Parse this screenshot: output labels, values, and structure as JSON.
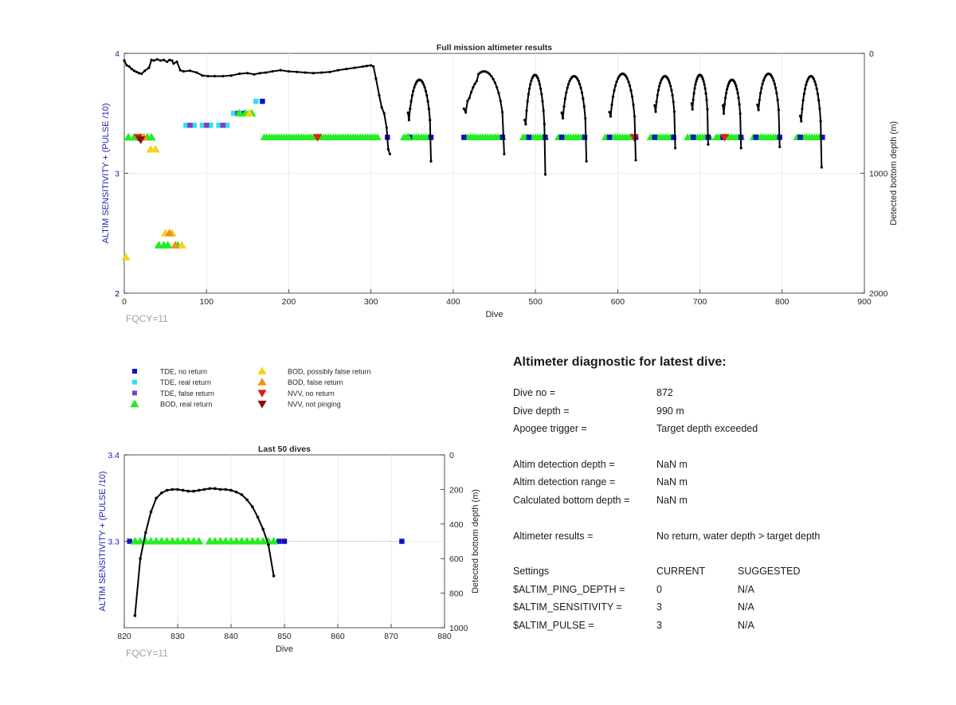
{
  "colors": {
    "tde_no_return": "#1010c8",
    "tde_real_return": "#2ee0f0",
    "tde_false_return": "#8040c8",
    "bod_real_return": "#22ee22",
    "bod_possibly_false": "#f6d21a",
    "bod_false_return": "#f09020",
    "nvv_no_return": "#e02010",
    "nvv_not_pinging": "#8a1010",
    "trace": "#000000",
    "left_axis_label": "#1e1eaa",
    "fqcy": "#a0a0a0"
  },
  "legend": [
    {
      "key": "tde_no_return",
      "marker": "square",
      "label": "TDE, no return"
    },
    {
      "key": "tde_real_return",
      "marker": "square",
      "label": "TDE, real return"
    },
    {
      "key": "tde_false_return",
      "marker": "square",
      "label": "TDE, false return"
    },
    {
      "key": "bod_real_return",
      "marker": "triangle-up",
      "label": "BOD, real return"
    },
    {
      "key": "bod_possibly_false",
      "marker": "triangle-up",
      "label": "BOD, possibly false return"
    },
    {
      "key": "bod_false_return",
      "marker": "triangle-up",
      "label": "BOD, false return"
    },
    {
      "key": "nvv_no_return",
      "marker": "triangle-down",
      "label": "NVV, no return"
    },
    {
      "key": "nvv_not_pinging",
      "marker": "triangle-down",
      "label": "NVV, not pinging"
    }
  ],
  "chart_data": [
    {
      "type": "scatter",
      "title": "Full mission altimeter results",
      "xlabel": "Dive",
      "ylabel": "ALTIM SENSITIVITY + (PULSE /10)",
      "y2label": "Detected bottom depth (m)",
      "annotation": "FQCY=11",
      "xlim": [
        0,
        900
      ],
      "xticks": [
        0,
        100,
        200,
        300,
        400,
        500,
        600,
        700,
        800,
        900
      ],
      "ylim": [
        2,
        4
      ],
      "yticks": [
        2,
        3,
        4
      ],
      "y2lim": [
        2000,
        0
      ],
      "y2ticks": [
        0,
        1000,
        2000
      ],
      "grid": true,
      "markers": {
        "tde_no_return": [
          [
            168,
            3.6
          ],
          [
            145,
            3.5
          ],
          [
            320,
            3.3
          ],
          [
            347,
            3.3
          ],
          [
            373,
            3.3
          ],
          [
            413,
            3.3
          ],
          [
            460,
            3.3
          ],
          [
            492,
            3.3
          ],
          [
            512,
            3.3
          ],
          [
            532,
            3.3
          ],
          [
            560,
            3.3
          ],
          [
            590,
            3.3
          ],
          [
            622,
            3.3
          ],
          [
            645,
            3.3
          ],
          [
            668,
            3.3
          ],
          [
            692,
            3.3
          ],
          [
            710,
            3.3
          ],
          [
            728,
            3.3
          ],
          [
            750,
            3.3
          ],
          [
            768,
            3.3
          ],
          [
            797,
            3.3
          ],
          [
            822,
            3.3
          ],
          [
            849,
            3.3
          ]
        ],
        "tde_real_return": [
          [
            160,
            3.6
          ],
          [
            75,
            3.4
          ],
          [
            85,
            3.4
          ],
          [
            95,
            3.4
          ],
          [
            105,
            3.4
          ],
          [
            115,
            3.4
          ],
          [
            125,
            3.4
          ],
          [
            133,
            3.5
          ],
          [
            140,
            3.5
          ],
          [
            150,
            3.5
          ]
        ],
        "tde_false_return": [
          [
            80,
            3.4
          ],
          [
            100,
            3.4
          ],
          [
            120,
            3.4
          ],
          [
            138,
            3.5
          ]
        ],
        "bod_real_return": [
          [
            5,
            3.3
          ],
          [
            12,
            3.3
          ],
          [
            20,
            3.3
          ],
          [
            28,
            3.3
          ],
          [
            33,
            3.3
          ],
          [
            42,
            2.4
          ],
          [
            48,
            2.4
          ],
          [
            53,
            2.4
          ],
          [
            65,
            2.4
          ],
          [
            140,
            3.5
          ],
          [
            147,
            3.5
          ],
          [
            155,
            3.5
          ],
          [
            345,
            3.3
          ]
        ],
        "bod_possibly_false": [
          [
            2,
            2.3
          ],
          [
            32,
            3.2
          ],
          [
            38,
            3.2
          ],
          [
            50,
            2.5
          ],
          [
            58,
            2.5
          ],
          [
            70,
            2.4
          ],
          [
            152,
            3.5
          ]
        ],
        "bod_false_return": [
          [
            24,
            3.3
          ],
          [
            55,
            2.5
          ],
          [
            62,
            2.4
          ]
        ],
        "nvv_no_return": [
          [
            17,
            3.3
          ],
          [
            235,
            3.3
          ],
          [
            620,
            3.3
          ],
          [
            730,
            3.3
          ]
        ],
        "nvv_not_pinging": [
          [
            20,
            3.28
          ]
        ]
      },
      "bod_runs": [
        [
          170,
          310
        ],
        [
          340,
          372
        ],
        [
          415,
          462
        ],
        [
          485,
          512
        ],
        [
          528,
          558
        ],
        [
          585,
          620
        ],
        [
          640,
          668
        ],
        [
          685,
          712
        ],
        [
          720,
          752
        ],
        [
          765,
          795
        ],
        [
          818,
          847
        ]
      ],
      "trace_plateau": [
        [
          0,
          60
        ],
        [
          3,
          100
        ],
        [
          6,
          110
        ],
        [
          9,
          130
        ],
        [
          12,
          145
        ],
        [
          15,
          155
        ],
        [
          18,
          165
        ],
        [
          21,
          170
        ],
        [
          25,
          145
        ],
        [
          30,
          120
        ],
        [
          33,
          55
        ],
        [
          36,
          60
        ],
        [
          40,
          50
        ],
        [
          44,
          60
        ],
        [
          48,
          55
        ],
        [
          52,
          70
        ],
        [
          55,
          55
        ],
        [
          58,
          60
        ],
        [
          60,
          85
        ],
        [
          64,
          70
        ],
        [
          68,
          140
        ],
        [
          72,
          150
        ],
        [
          80,
          145
        ],
        [
          88,
          160
        ],
        [
          95,
          185
        ],
        [
          102,
          190
        ],
        [
          110,
          190
        ],
        [
          120,
          190
        ],
        [
          130,
          185
        ],
        [
          140,
          170
        ],
        [
          150,
          165
        ],
        [
          158,
          175
        ],
        [
          165,
          165
        ],
        [
          172,
          160
        ],
        [
          180,
          150
        ],
        [
          190,
          140
        ],
        [
          200,
          150
        ],
        [
          210,
          155
        ],
        [
          220,
          160
        ],
        [
          230,
          165
        ],
        [
          240,
          160
        ],
        [
          250,
          155
        ],
        [
          260,
          140
        ],
        [
          270,
          130
        ],
        [
          280,
          120
        ],
        [
          290,
          110
        ],
        [
          295,
          105
        ],
        [
          300,
          100
        ],
        [
          303,
          110
        ],
        [
          306,
          210
        ],
        [
          310,
          350
        ],
        [
          313,
          450
        ],
        [
          316,
          500
        ],
        [
          319,
          620
        ],
        [
          321,
          800
        ],
        [
          323,
          840
        ]
      ],
      "dives": [
        {
          "start": 345,
          "end": 373,
          "apex_depth": 220,
          "end_depth": 900
        },
        {
          "start": 413,
          "end": 462,
          "apex_depth": 150,
          "end_depth": 840,
          "mid_bump": true
        },
        {
          "start": 487,
          "end": 512,
          "apex_depth": 180,
          "end_depth": 1010
        },
        {
          "start": 532,
          "end": 562,
          "apex_depth": 190,
          "end_depth": 900
        },
        {
          "start": 590,
          "end": 622,
          "apex_depth": 170,
          "end_depth": 890
        },
        {
          "start": 645,
          "end": 670,
          "apex_depth": 190,
          "end_depth": 790
        },
        {
          "start": 690,
          "end": 710,
          "apex_depth": 180,
          "end_depth": 760
        },
        {
          "start": 728,
          "end": 750,
          "apex_depth": 220,
          "end_depth": 790
        },
        {
          "start": 770,
          "end": 797,
          "apex_depth": 170,
          "end_depth": 780
        },
        {
          "start": 822,
          "end": 848,
          "apex_depth": 190,
          "end_depth": 950
        }
      ]
    },
    {
      "type": "scatter",
      "title": "Last 50 dives",
      "xlabel": "Dive",
      "ylabel": "ALTIM SENSITIVITY + (PULSE /10)",
      "y2label": "Detected bottom depth (m)",
      "annotation": "FQCY=11",
      "xlim": [
        820,
        880
      ],
      "xticks": [
        820,
        830,
        840,
        850,
        860,
        870,
        880
      ],
      "ylim": [
        3.2,
        3.4
      ],
      "yticks": [
        3.3,
        3.4
      ],
      "y2lim": [
        1000,
        0
      ],
      "y2ticks": [
        0,
        200,
        400,
        600,
        800,
        1000
      ],
      "grid": true,
      "markers": {
        "tde_no_return": [
          [
            821,
            3.3
          ],
          [
            849,
            3.3
          ],
          [
            850,
            3.3
          ],
          [
            872,
            3.3
          ]
        ],
        "bod_real_return": [
          [
            822,
            3.3
          ],
          [
            823,
            3.3
          ],
          [
            824,
            3.3
          ],
          [
            825,
            3.3
          ],
          [
            826,
            3.3
          ],
          [
            827,
            3.3
          ],
          [
            828,
            3.3
          ],
          [
            829,
            3.3
          ],
          [
            830,
            3.3
          ],
          [
            831,
            3.3
          ],
          [
            832,
            3.3
          ],
          [
            833,
            3.3
          ],
          [
            834,
            3.3
          ],
          [
            836,
            3.3
          ],
          [
            837,
            3.3
          ],
          [
            838,
            3.3
          ],
          [
            839,
            3.3
          ],
          [
            840,
            3.3
          ],
          [
            841,
            3.3
          ],
          [
            842,
            3.3
          ],
          [
            843,
            3.3
          ],
          [
            844,
            3.3
          ],
          [
            845,
            3.3
          ],
          [
            846,
            3.3
          ],
          [
            847,
            3.3
          ],
          [
            848,
            3.3
          ]
        ]
      },
      "trace": [
        [
          822,
          930
        ],
        [
          823,
          600
        ],
        [
          824,
          450
        ],
        [
          825,
          330
        ],
        [
          826,
          250
        ],
        [
          827,
          220
        ],
        [
          828,
          205
        ],
        [
          829,
          200
        ],
        [
          830,
          200
        ],
        [
          831,
          205
        ],
        [
          832,
          210
        ],
        [
          833,
          210
        ],
        [
          834,
          205
        ],
        [
          835,
          200
        ],
        [
          836,
          195
        ],
        [
          837,
          195
        ],
        [
          838,
          200
        ],
        [
          839,
          200
        ],
        [
          840,
          205
        ],
        [
          841,
          215
        ],
        [
          842,
          230
        ],
        [
          843,
          260
        ],
        [
          844,
          300
        ],
        [
          845,
          360
        ],
        [
          846,
          430
        ],
        [
          847,
          520
        ],
        [
          848,
          700
        ]
      ]
    }
  ],
  "diagnostic": {
    "title": "Altimeter diagnostic for latest dive:",
    "rows": [
      {
        "label": "Dive no =",
        "value": "872"
      },
      {
        "label": "Dive depth =",
        "value": "990 m"
      },
      {
        "label": "Apogee trigger =",
        "value": "Target depth exceeded"
      },
      {
        "gap": true
      },
      {
        "label": "Altim detection depth =",
        "value": "NaN m"
      },
      {
        "label": "Altim detection range =",
        "value": "NaN m"
      },
      {
        "label": "Calculated bottom depth =",
        "value": "NaN m"
      },
      {
        "gap": true
      },
      {
        "label": "Altimeter results =",
        "value": "No return, water depth > target depth"
      },
      {
        "gap": true
      },
      {
        "label": "Settings",
        "value": "CURRENT",
        "value2": "SUGGESTED"
      },
      {
        "label": "$ALTIM_PING_DEPTH =",
        "value": "0",
        "value2": "N/A"
      },
      {
        "label": "$ALTIM_SENSITIVITY =",
        "value": "3",
        "value2": "N/A"
      },
      {
        "label": "$ALTIM_PULSE =",
        "value": "3",
        "value2": "N/A"
      }
    ]
  }
}
